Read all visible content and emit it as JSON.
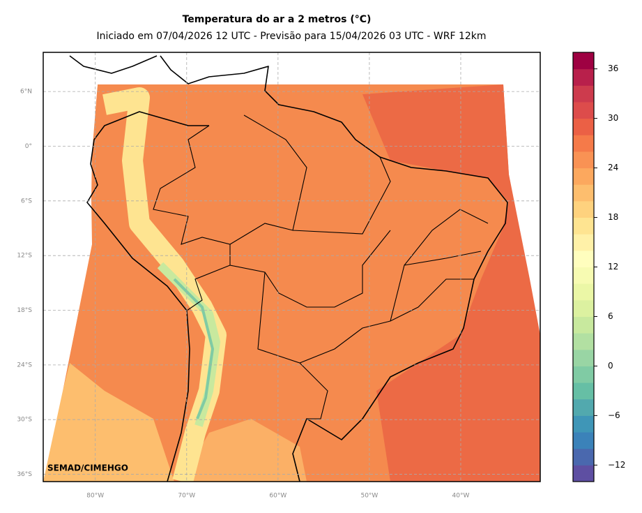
{
  "chart_data": {
    "type": "map",
    "title": "Temperatura do ar a 2 metros (°C)",
    "subtitle": "Iniciado em 07/04/2026 12 UTC - Previsão para 15/04/2026 03 UTC - WRF 12km",
    "credit": "SEMAD/CIMEHGO",
    "xlim": [
      -85.7,
      -31.3
    ],
    "ylim": [
      -36.8,
      10.3
    ],
    "xticks": [
      {
        "value": -80,
        "label": "80°W"
      },
      {
        "value": -70,
        "label": "70°W"
      },
      {
        "value": -60,
        "label": "60°W"
      },
      {
        "value": -50,
        "label": "50°W"
      },
      {
        "value": -40,
        "label": "40°W"
      }
    ],
    "yticks": [
      {
        "value": 6,
        "label": "6°N"
      },
      {
        "value": 0,
        "label": "0°"
      },
      {
        "value": -6,
        "label": "6°S"
      },
      {
        "value": -12,
        "label": "12°S"
      },
      {
        "value": -18,
        "label": "18°S"
      },
      {
        "value": -24,
        "label": "24°S"
      },
      {
        "value": -30,
        "label": "30°S"
      },
      {
        "value": -36,
        "label": "36°S"
      }
    ],
    "grid": true,
    "colorbar": {
      "lim": [
        -14,
        38
      ],
      "ticks": [
        {
          "value": -12,
          "label": "−12"
        },
        {
          "value": -6,
          "label": "−6"
        },
        0,
        6,
        12,
        18,
        24,
        30,
        36
      ],
      "colors": [
        "#5e4fa2",
        "#4a68ae",
        "#3b82b9",
        "#3f96b7",
        "#52a9ae",
        "#66bfa5",
        "#80cba4",
        "#99d5a4",
        "#b2e0a2",
        "#c8e99e",
        "#dcf1a0",
        "#ebf7a6",
        "#f7fbb2",
        "#fffebe",
        "#fff1a8",
        "#fee491",
        "#fed27e",
        "#fdbe6e",
        "#fca85e",
        "#f99254",
        "#f57a49",
        "#eb6045",
        "#dd4c4b",
        "#cd3b4d",
        "#b8204b",
        "#9e0142"
      ]
    }
  }
}
